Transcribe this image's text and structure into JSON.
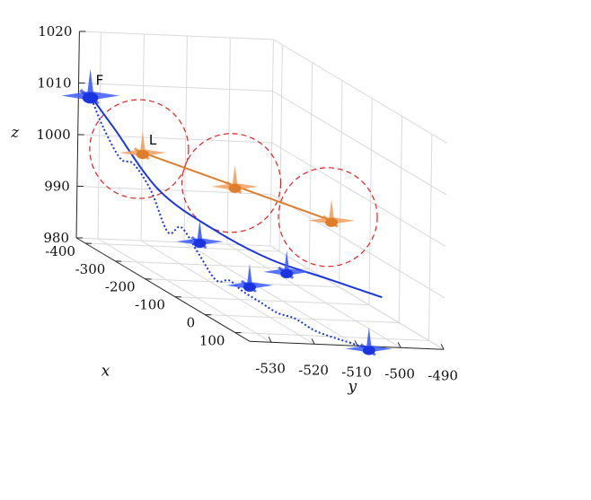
{
  "chart_data": {
    "type": "line3d",
    "title": "",
    "xlabel": "x",
    "ylabel": "y",
    "zlabel": "z",
    "x_ticks": [
      "-400",
      "-300",
      "-200",
      "-100",
      "0",
      "100"
    ],
    "y_ticks": [
      "-530",
      "-520",
      "-510",
      "-500",
      "-490"
    ],
    "z_ticks": [
      "980",
      "990",
      "1000",
      "1010",
      "1020"
    ],
    "xlim": [
      -430,
      150
    ],
    "ylim": [
      -535,
      -490
    ],
    "zlim": [
      980,
      1020
    ],
    "grid": true,
    "labels": {
      "follower": "F",
      "leader": "L"
    },
    "colors": {
      "follower": "#1a35e0",
      "leader": "#e07d2a",
      "circle": "#e02020",
      "follower_icon": "#3a5bff",
      "leader_icon": "#f0a060"
    },
    "series": [
      {
        "x": [
          -419,
          -380,
          -300,
          -200,
          -100,
          0,
          100
        ],
        "y": [
          -533,
          -530,
          -525,
          -519,
          -513,
          -507,
          -501
        ],
        "z": [
          1008,
          1003,
          994,
          990,
          988,
          988,
          988
        ]
      },
      {
        "x": [
          -400,
          -100
        ],
        "y": [
          -522,
          -499
        ],
        "z": [
          998,
          996
        ]
      },
      {
        "x": [
          -419,
          -390,
          -360,
          -330,
          -300,
          -270,
          -240,
          -210,
          -180,
          -150,
          -120,
          -90,
          -60,
          -30,
          0,
          30,
          60,
          90,
          102
        ],
        "y": [
          -533,
          -532,
          -530,
          -529,
          -527,
          -525,
          -524,
          -522,
          -520,
          -519,
          -518,
          -516,
          -514,
          -512,
          -510,
          -509,
          -507,
          -505,
          -504
        ],
        "z": [
          1008,
          1003,
          998,
          998,
          994,
          987,
          989,
          985,
          981,
          982,
          981,
          980,
          979,
          979,
          978,
          978,
          978,
          978,
          978
        ]
      }
    ],
    "follower_positions": [
      {
        "x": -419,
        "y": -533,
        "z": 1008
      },
      {
        "x": -221,
        "y": -521,
        "z": 987
      },
      {
        "x": -125,
        "y": -516,
        "z": 982
      },
      {
        "x": -60,
        "y": -512,
        "z": 987
      },
      {
        "x": 102,
        "y": -504,
        "z": 978
      }
    ],
    "leader_positions": [
      {
        "x": -400,
        "y": -522,
        "z": 998
      },
      {
        "x": -250,
        "y": -511,
        "z": 997
      },
      {
        "x": -100,
        "y": -499,
        "z": 996
      }
    ]
  }
}
